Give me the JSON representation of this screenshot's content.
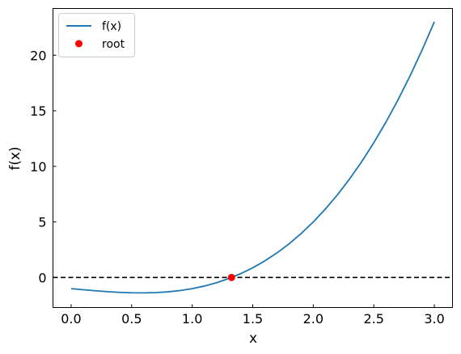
{
  "chart_data": {
    "type": "line",
    "xlabel": "x",
    "ylabel": "f(x)",
    "xlim": [
      -0.15,
      3.15
    ],
    "ylim": [
      -2.7,
      24.2
    ],
    "xticks": [
      0.0,
      0.5,
      1.0,
      1.5,
      2.0,
      2.5,
      3.0
    ],
    "xtick_labels": [
      "0.0",
      "0.5",
      "1.0",
      "1.5",
      "2.0",
      "2.5",
      "3.0"
    ],
    "yticks": [
      0,
      5,
      10,
      15,
      20
    ],
    "ytick_labels": [
      "0",
      "5",
      "10",
      "15",
      "20"
    ],
    "grid": false,
    "legend_position": "top-left",
    "series": [
      {
        "name": "f(x)",
        "type": "line",
        "color": "#1f77b4",
        "x": [
          0.0,
          0.1,
          0.2,
          0.3,
          0.4,
          0.5,
          0.6,
          0.7,
          0.8,
          0.9,
          1.0,
          1.1,
          1.2,
          1.3,
          1.4,
          1.5,
          1.6,
          1.7,
          1.8,
          1.9,
          2.0,
          2.1,
          2.2,
          2.3,
          2.4,
          2.5,
          2.6,
          2.7,
          2.8,
          2.9,
          3.0
        ],
        "y": [
          -1.0,
          -1.099,
          -1.192,
          -1.273,
          -1.336,
          -1.375,
          -1.384,
          -1.357,
          -1.288,
          -1.171,
          -1.0,
          -0.769,
          -0.472,
          -0.103,
          0.344,
          0.875,
          1.496,
          2.213,
          3.032,
          3.959,
          5.0,
          6.161,
          7.448,
          8.867,
          10.424,
          12.125,
          13.976,
          15.983,
          18.152,
          20.489,
          23.0
        ]
      },
      {
        "name": "root",
        "type": "scatter",
        "color": "#ff0000",
        "x": [
          1.3247
        ],
        "y": [
          0.0
        ]
      }
    ],
    "reference_lines": [
      {
        "axis": "y",
        "value": 0,
        "style": "dashed",
        "color": "#000000"
      }
    ]
  }
}
